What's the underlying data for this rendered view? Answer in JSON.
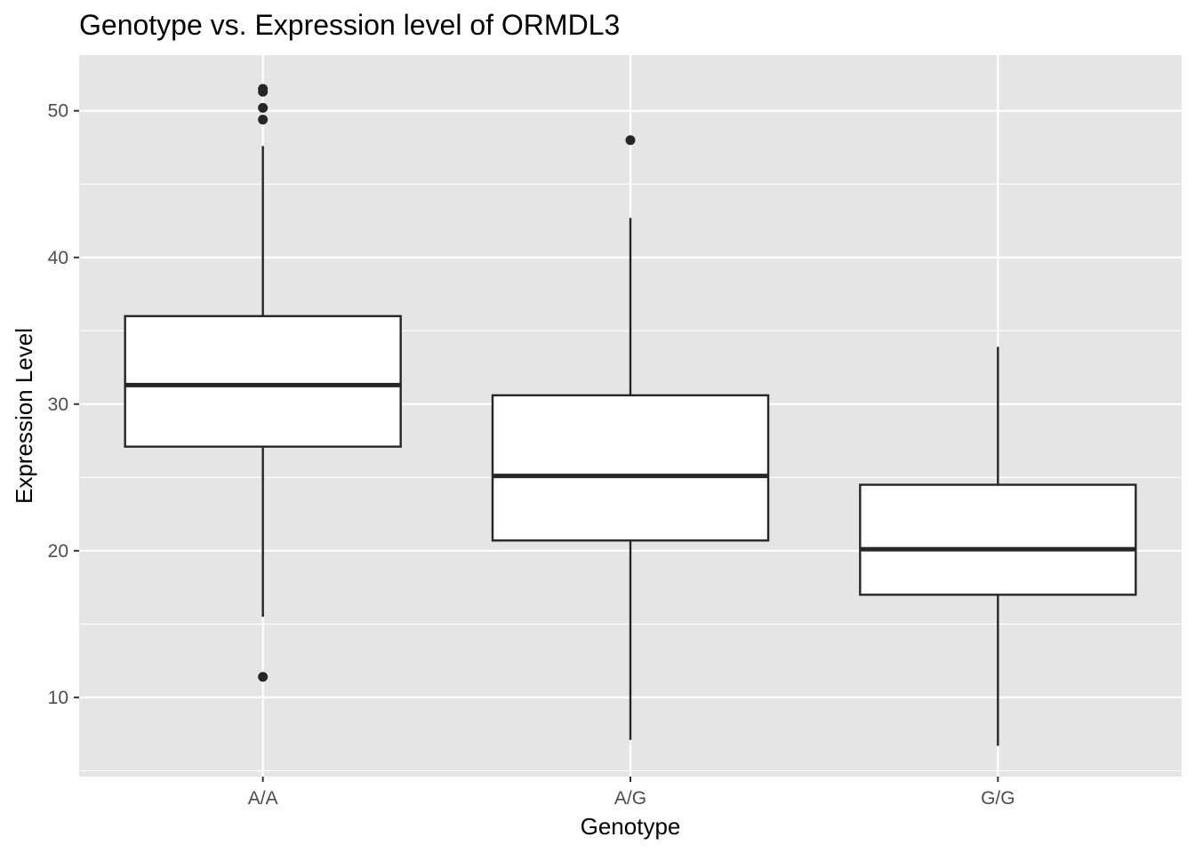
{
  "chart_data": {
    "type": "boxplot",
    "title": "Genotype vs. Expression level of ORMDL3",
    "xlabel": "Genotype",
    "ylabel": "Expression Level",
    "categories": [
      "A/A",
      "A/G",
      "G/G"
    ],
    "ylim": [
      4.6,
      53.8
    ],
    "yticks": [
      10,
      20,
      30,
      40,
      50
    ],
    "grid": true,
    "background": "#e5e5e5",
    "grid_color": "#ffffff",
    "box_fill": "#ffffff",
    "line_color": "#262626",
    "boxes": [
      {
        "category": "A/A",
        "whisker_low": 15.5,
        "q1": 27.1,
        "median": 31.3,
        "q3": 36.0,
        "whisker_high": 47.6,
        "outliers": [
          51.5,
          51.3,
          50.2,
          49.4,
          11.4
        ]
      },
      {
        "category": "A/G",
        "whisker_low": 7.1,
        "q1": 20.7,
        "median": 25.1,
        "q3": 30.6,
        "whisker_high": 42.7,
        "outliers": [
          48.0
        ]
      },
      {
        "category": "G/G",
        "whisker_low": 6.7,
        "q1": 17.0,
        "median": 20.1,
        "q3": 24.5,
        "whisker_high": 33.9,
        "outliers": []
      }
    ]
  }
}
